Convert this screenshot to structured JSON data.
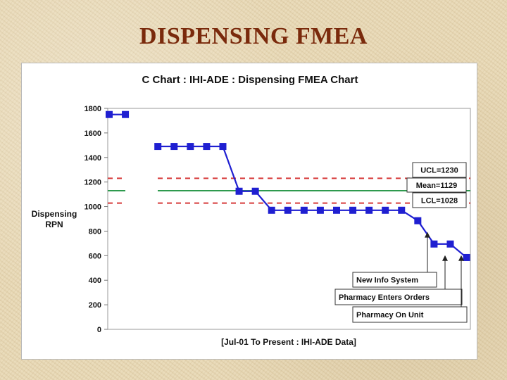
{
  "slide": {
    "title": "DISPENSING FMEA"
  },
  "chart_data": {
    "type": "line",
    "title": "C Chart : IHI-ADE : Dispensing FMEA Chart",
    "xlabel": "[Jul-01 To Present : IHI-ADE Data]",
    "ylabel_lines": [
      "Dispensing",
      "RPN"
    ],
    "ylim": [
      0,
      1800
    ],
    "yticks": [
      0,
      200,
      400,
      600,
      800,
      1000,
      1200,
      1400,
      1600,
      1800
    ],
    "grid": false,
    "series": [
      {
        "color": "#1f1fd1",
        "values": [
          1750,
          1750,
          null,
          1490,
          1490,
          1490,
          1490,
          1490,
          1125,
          1125,
          970,
          970,
          970,
          970,
          970,
          970,
          970,
          970,
          970,
          885,
          695,
          695,
          585
        ]
      }
    ],
    "control_lines": [
      {
        "label": "UCL=1230",
        "value": 1230,
        "color": "#d63a3a",
        "style": "dashed"
      },
      {
        "label": "Mean=1129",
        "value": 1129,
        "color": "#2e9a4e",
        "style": "solid"
      },
      {
        "label": "LCL=1028",
        "value": 1028,
        "color": "#d63a3a",
        "style": "dashed"
      }
    ],
    "annotations": [
      {
        "text": "New Info System",
        "point_index": 19
      },
      {
        "text": "Pharmacy Enters Orders",
        "point_index": 20
      },
      {
        "text": "Pharmacy On Unit",
        "point_index": 21
      }
    ]
  }
}
